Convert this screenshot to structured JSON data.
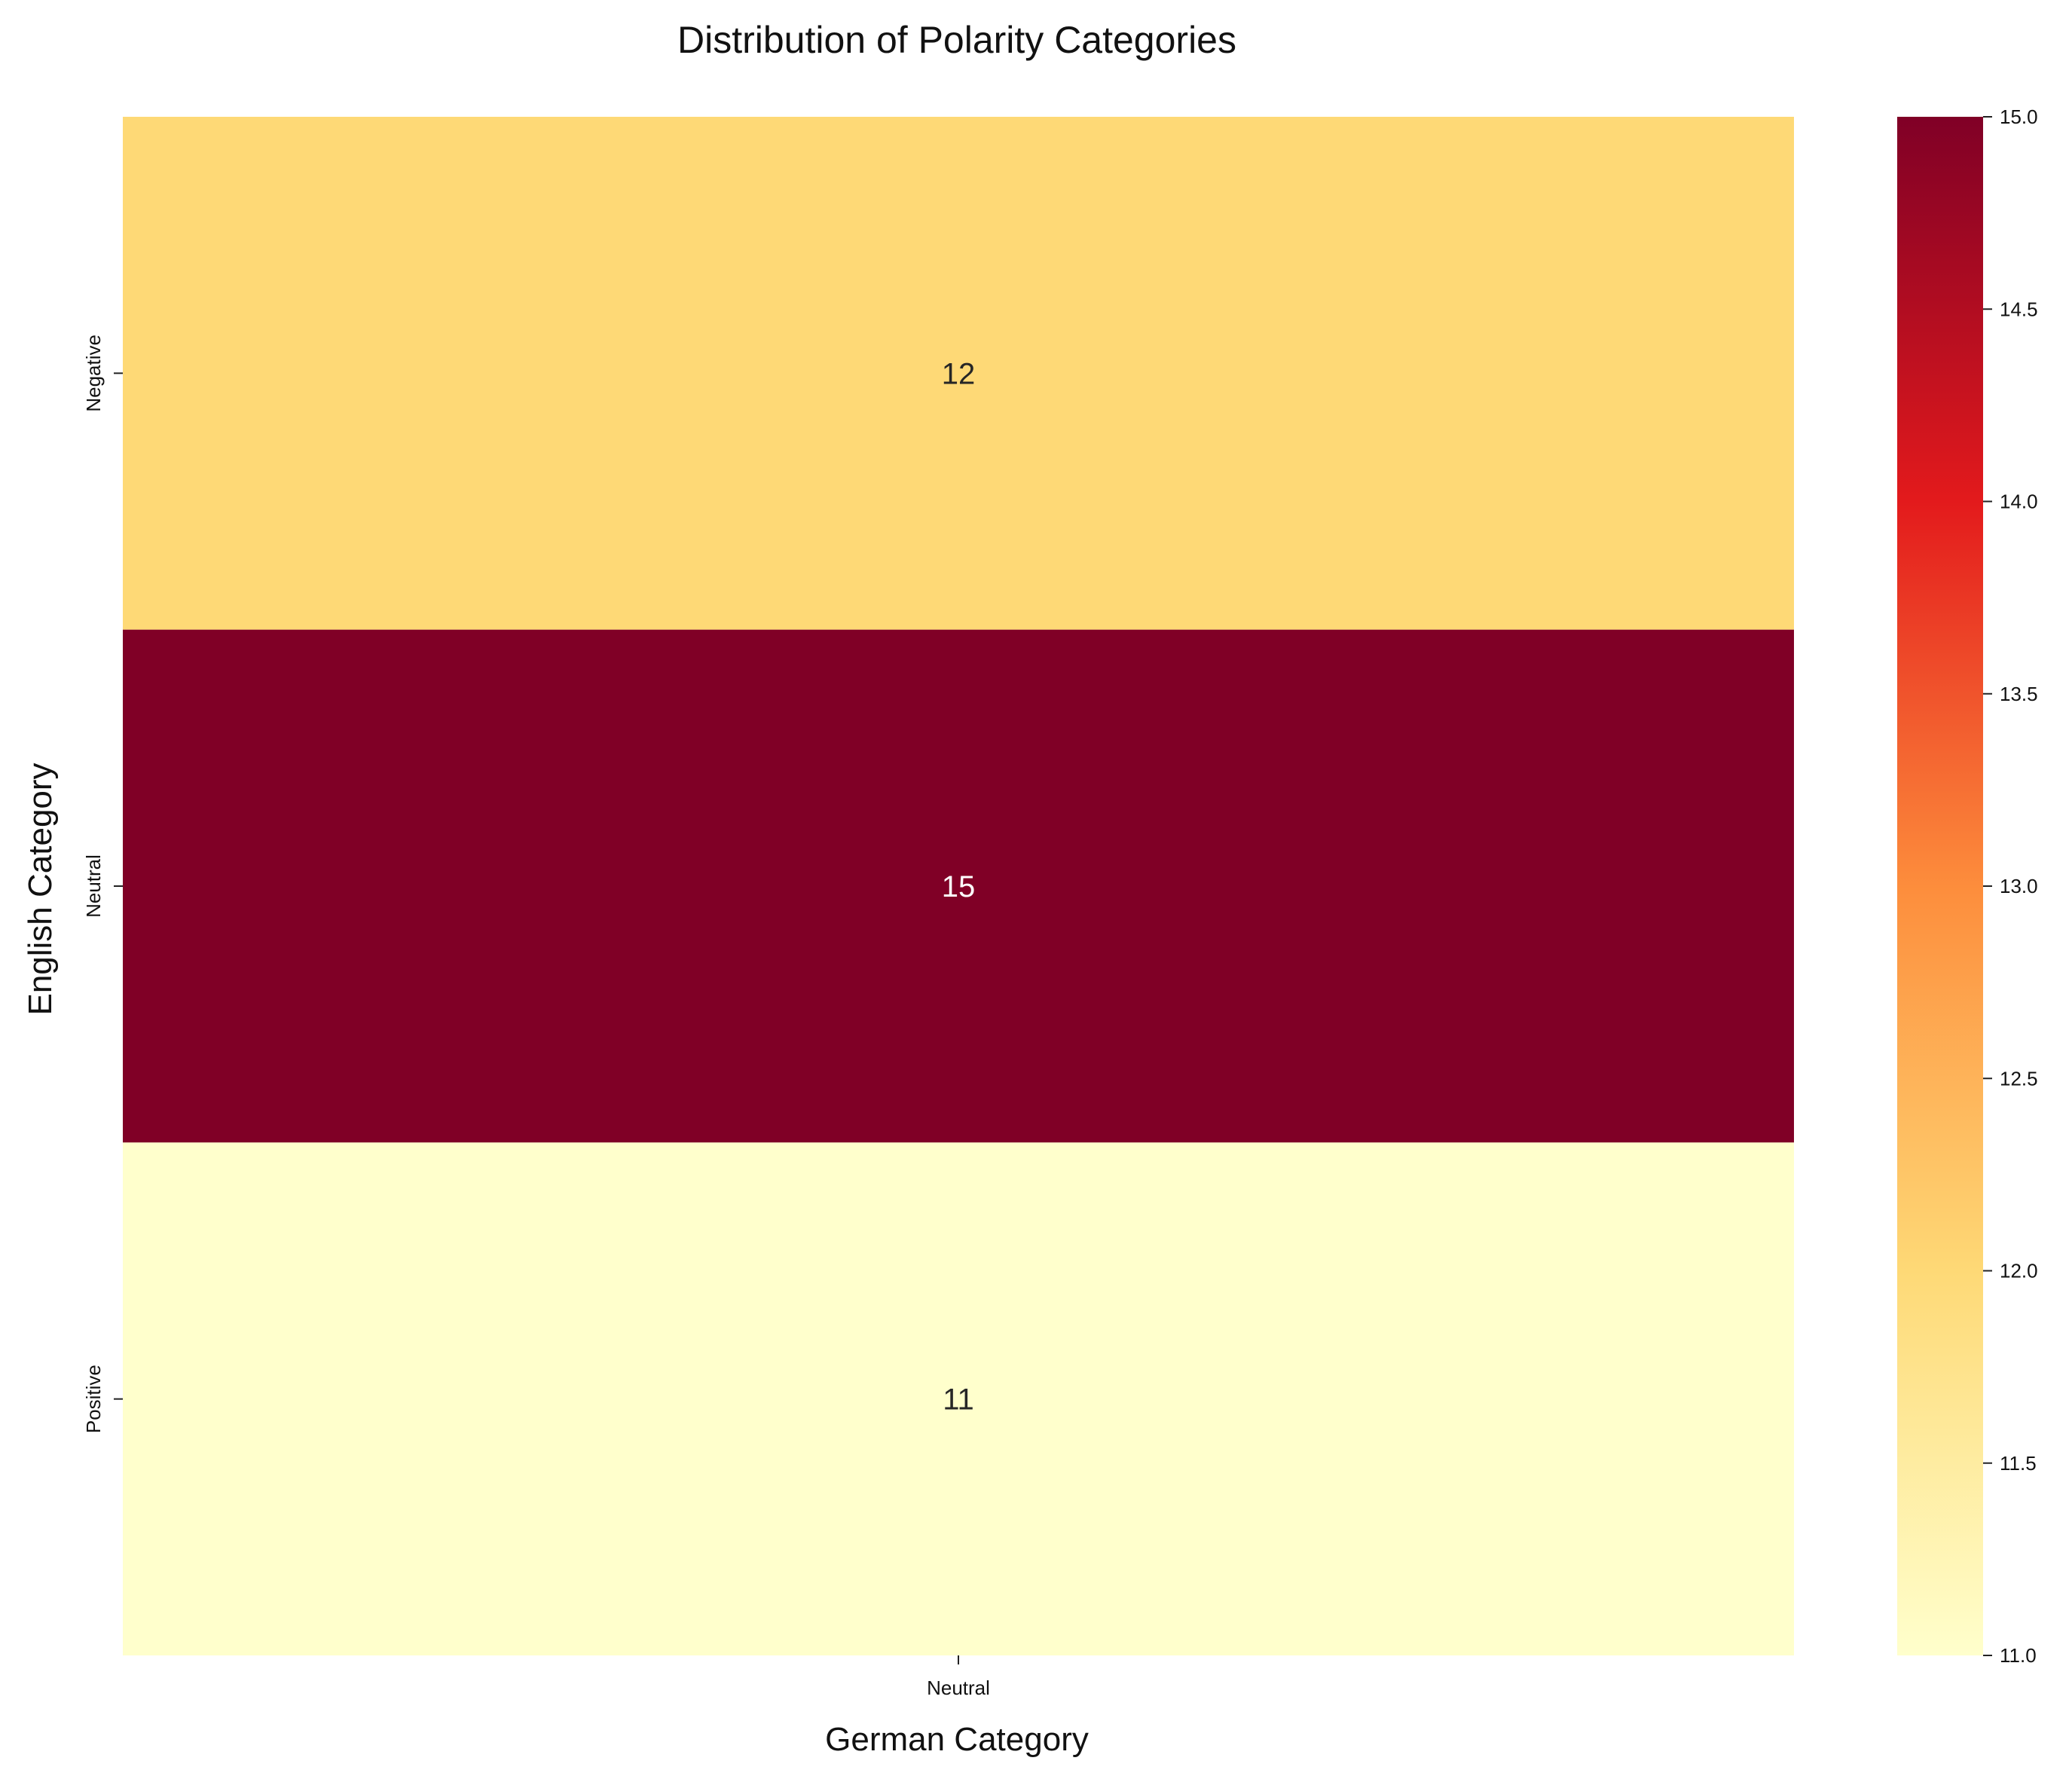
{
  "chart_data": {
    "type": "heatmap",
    "title": "Distribution of Polarity Categories",
    "xlabel": "German Category",
    "ylabel": "English Category",
    "x_categories": [
      "Neutral"
    ],
    "y_categories": [
      "Negative",
      "Neutral",
      "Positive"
    ],
    "values": [
      [
        12
      ],
      [
        15
      ],
      [
        11
      ]
    ],
    "colormap": "YlOrRd",
    "color_range": [
      11.0,
      15.0
    ],
    "colorbar_ticks": [
      "11.0",
      "11.5",
      "12.0",
      "12.5",
      "13.0",
      "13.5",
      "14.0",
      "14.5",
      "15.0"
    ],
    "colors": {
      "low": "#ffffcc",
      "mid_low": "#fed976",
      "mid": "#fd8d3c",
      "mid_high": "#e31a1c",
      "high": "#800026"
    }
  }
}
